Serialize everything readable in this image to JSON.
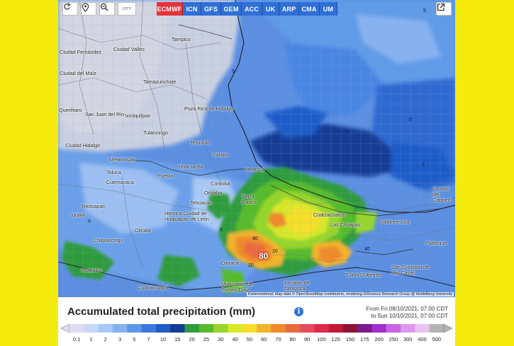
{
  "toolbar": {
    "refresh_icon": "refresh-icon",
    "location_icon": "location-pin-icon",
    "zoom_icon": "zoom-out-icon",
    "cities_label": "CITY",
    "share_icon": "share-icon"
  },
  "models": [
    {
      "label": "ECMWF",
      "active": true
    },
    {
      "label": "ICN",
      "active": false
    },
    {
      "label": "GFS",
      "active": false
    },
    {
      "label": "GEM",
      "active": false
    },
    {
      "label": "ACC",
      "active": false
    },
    {
      "label": "UK",
      "active": false
    },
    {
      "label": "ARP",
      "active": false
    },
    {
      "label": "CMA",
      "active": false
    },
    {
      "label": "UM",
      "active": false
    }
  ],
  "cities": [
    {
      "name": "Tampico"
    },
    {
      "name": "Ciudad Valles"
    },
    {
      "name": "Ciudad Fernández"
    },
    {
      "name": "Tamazunchale"
    },
    {
      "name": "Ciudad del Maíz"
    },
    {
      "name": "San Juan del Río"
    },
    {
      "name": "Querétaro"
    },
    {
      "name": "Ixmiquilpan"
    },
    {
      "name": "Poza Rica de Hidalgo"
    },
    {
      "name": "Tulancingo"
    },
    {
      "name": "Teziutlán"
    },
    {
      "name": "Xalapa"
    },
    {
      "name": "Ciudad Hidalgo"
    },
    {
      "name": "Mexico City"
    },
    {
      "name": "Toluca"
    },
    {
      "name": "Huamantla"
    },
    {
      "name": "Puebla"
    },
    {
      "name": "Veracruz"
    },
    {
      "name": "Córdoba"
    },
    {
      "name": "Orizaba"
    },
    {
      "name": "Cuernavaca"
    },
    {
      "name": "Tierra Blanca"
    },
    {
      "name": "Tehuacán"
    },
    {
      "name": "Heroica Ciudad de Huajuapan de León"
    },
    {
      "name": "Iguala"
    },
    {
      "name": "Chilpancingo"
    },
    {
      "name": "Acapulco"
    },
    {
      "name": "Cualiniculapa"
    },
    {
      "name": "Oaxaca"
    },
    {
      "name": "Miahuatlán de Porfirio Díaz"
    },
    {
      "name": "Juchitán de Zaragoza"
    },
    {
      "name": "Coatzacoalcos"
    },
    {
      "name": "Las Choapas"
    },
    {
      "name": "Villahermosa"
    },
    {
      "name": "Tuxtla Gutiérrez"
    },
    {
      "name": "San Cristóbal de Las Casas"
    },
    {
      "name": "Palenque"
    },
    {
      "name": "Ciudad del Carmen"
    },
    {
      "name": "Teloloapan"
    },
    {
      "name": "Olinalá"
    }
  ],
  "contour_labels": [
    "5",
    "5",
    "5",
    "5",
    "5",
    "5",
    "20",
    "40",
    "20",
    "40",
    "5"
  ],
  "peak_value": "80",
  "attribution": "Kartenmaterial, Map data © OpenStreetMap contributors, rendering GIScience Research Group @ Heidelberg University",
  "legend": {
    "title": "Accumulated total precipitation (mm)",
    "info_icon": "info-icon",
    "period_from": "From Fri 08/10/2021, 07:00 CDT",
    "period_to": "to Sun 10/10/2021, 07:00 CDT",
    "unit": "mm",
    "steps": [
      {
        "value": "0.1",
        "color": "#dcdcf2"
      },
      {
        "value": "1",
        "color": "#c7d8f7"
      },
      {
        "value": "2",
        "color": "#a8c8f6"
      },
      {
        "value": "3",
        "color": "#86b2f2"
      },
      {
        "value": "5",
        "color": "#5c97ea"
      },
      {
        "value": "7",
        "color": "#3a7ae0"
      },
      {
        "value": "10",
        "color": "#1f5cc9"
      },
      {
        "value": "15",
        "color": "#143d96"
      },
      {
        "value": "20",
        "color": "#2e9c3c"
      },
      {
        "value": "25",
        "color": "#55bb2a"
      },
      {
        "value": "30",
        "color": "#96d62b"
      },
      {
        "value": "40",
        "color": "#d8e82a"
      },
      {
        "value": "50",
        "color": "#f5df2a"
      },
      {
        "value": "60",
        "color": "#f3b32c"
      },
      {
        "value": "70",
        "color": "#ef8a2b"
      },
      {
        "value": "80",
        "color": "#ea6a3a"
      },
      {
        "value": "90",
        "color": "#e54c5c"
      },
      {
        "value": "100",
        "color": "#dd2a4c"
      },
      {
        "value": "125",
        "color": "#c01838"
      },
      {
        "value": "150",
        "color": "#8e1232"
      },
      {
        "value": "175",
        "color": "#7a1a8e"
      },
      {
        "value": "200",
        "color": "#a22ed0"
      },
      {
        "value": "250",
        "color": "#c864e6"
      },
      {
        "value": "300",
        "color": "#dc98ee"
      },
      {
        "value": "400",
        "color": "#e8c2f2"
      },
      {
        "value": "500",
        "color": "#b4b4b4"
      }
    ]
  }
}
